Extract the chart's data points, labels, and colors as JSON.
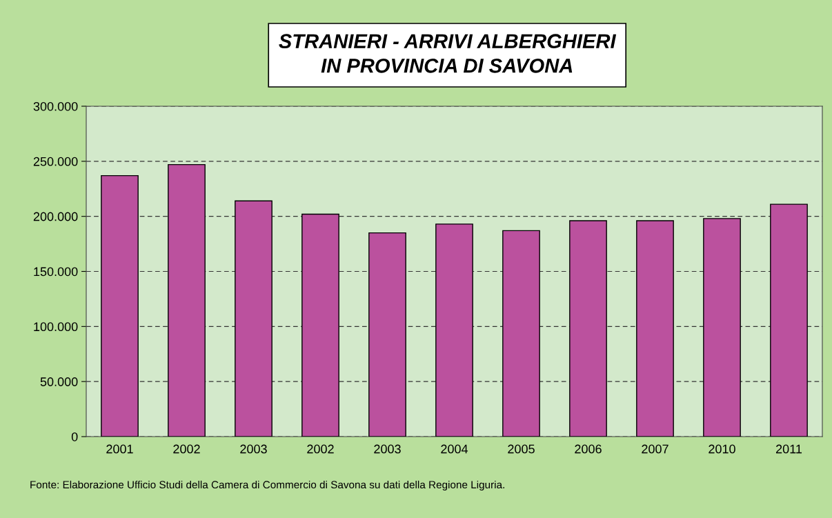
{
  "chart_data": {
    "type": "bar",
    "title": "STRANIERI - ARRIVI ALBERGHIERI\nIN PROVINCIA DI SAVONA",
    "categories": [
      "2001",
      "2002",
      "2003",
      "2002",
      "2003",
      "2004",
      "2005",
      "2006",
      "2007",
      "2010",
      "2011"
    ],
    "values": [
      237000,
      247000,
      214000,
      202000,
      185000,
      193000,
      187000,
      196000,
      196000,
      198000,
      211000
    ],
    "color": "#bb519e",
    "ylim": [
      0,
      300000
    ],
    "yticks": [
      0,
      {
        "value": 50000,
        "label": "50.000"
      },
      {
        "value": 100000,
        "label": "100.000"
      },
      {
        "value": 150000,
        "label": "150.000"
      },
      {
        "value": 200000,
        "label": "200.000"
      },
      {
        "value": 250000,
        "label": "250.000"
      },
      {
        "value": 300000,
        "label": "300.000"
      }
    ],
    "grid": "y",
    "annotations": [
      "Fonte: Elaborazione Ufficio Studi della Camera di Commercio di Savona su dati della Regione Liguria."
    ]
  }
}
